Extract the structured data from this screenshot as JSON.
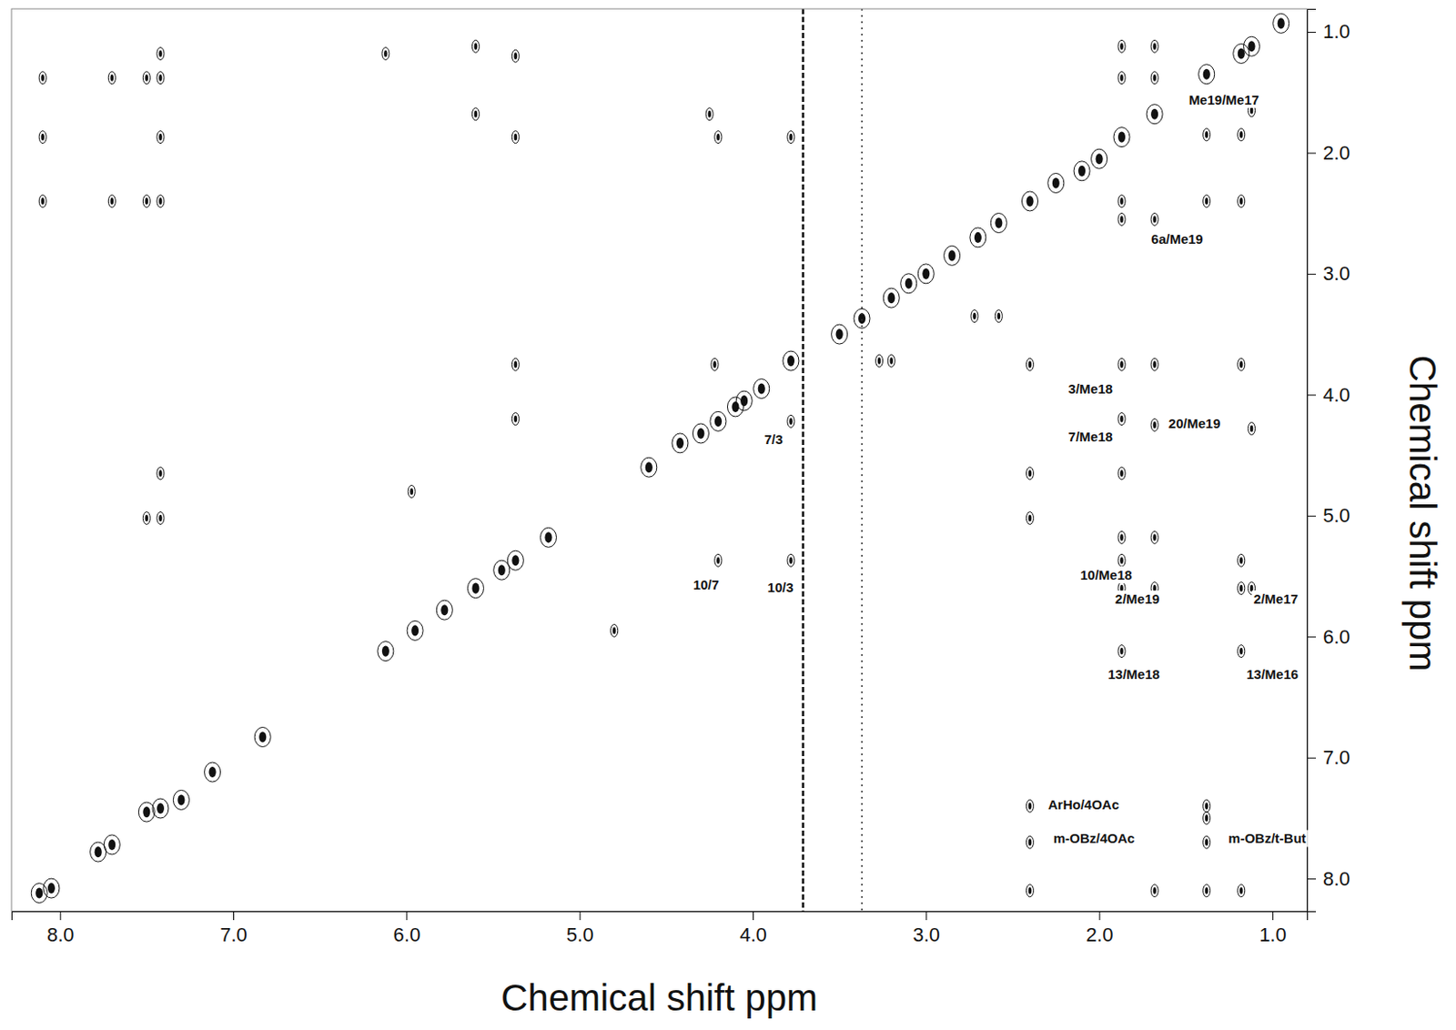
{
  "chart_data": {
    "type": "scatter",
    "x_label": "Chemical shift ppm",
    "y_label": "Chemical shift ppm",
    "xlim": [
      8.28,
      0.8
    ],
    "ylim": [
      0.81,
      8.27
    ],
    "xticks": [
      {
        "value": 8,
        "label": "8.0"
      },
      {
        "value": 7,
        "label": "7.0"
      },
      {
        "value": 6,
        "label": "6.0"
      },
      {
        "value": 5,
        "label": "5.0"
      },
      {
        "value": 4,
        "label": "4.0"
      },
      {
        "value": 3,
        "label": "3.0"
      },
      {
        "value": 2,
        "label": "2.0"
      },
      {
        "value": 1,
        "label": "1.0"
      }
    ],
    "yticks": [
      {
        "value": 1,
        "label": "1.0"
      },
      {
        "value": 2,
        "label": "2.0"
      },
      {
        "value": 3,
        "label": "3.0"
      },
      {
        "value": 4,
        "label": "4.0"
      },
      {
        "value": 5,
        "label": "5.0"
      },
      {
        "value": 6,
        "label": "6.0"
      },
      {
        "value": 7,
        "label": "7.0"
      },
      {
        "value": 8,
        "label": "8.0"
      }
    ],
    "grid": false,
    "series": [
      {
        "type": "scatter",
        "marker": "contour",
        "color": "#111111",
        "x": [
          8.12,
          8.05,
          7.78,
          7.7,
          7.5,
          7.42,
          7.3,
          7.12,
          6.83,
          6.12,
          5.95,
          5.78,
          5.6,
          5.45,
          5.37,
          5.18,
          4.6,
          4.42,
          4.3,
          4.2,
          4.1,
          4.05,
          3.95,
          3.78,
          3.5,
          3.37,
          3.2,
          3.1,
          3.0,
          2.85,
          2.7,
          2.58,
          2.4,
          2.25,
          2.1,
          2.0,
          1.87,
          1.68,
          1.38,
          1.18,
          1.12,
          0.95,
          6.12,
          5.6,
          5.37,
          8.1,
          7.7,
          7.5,
          7.42,
          7.42,
          5.6,
          5.37,
          4.2,
          3.78,
          4.25,
          8.1,
          7.7,
          7.5,
          7.42,
          7.42,
          8.1,
          2.4,
          2.4,
          2.4,
          2.4,
          2.4,
          2.4,
          1.87,
          1.87,
          1.87,
          1.87,
          1.87,
          1.87,
          1.87,
          1.87,
          1.87,
          1.87,
          1.87,
          1.68,
          1.68,
          1.68,
          1.68,
          1.68,
          1.68,
          1.68,
          1.68,
          1.38,
          1.38,
          1.38,
          1.38,
          1.38,
          1.38,
          1.18,
          1.18,
          1.18,
          1.18,
          1.18,
          1.18,
          1.18,
          1.12,
          1.12,
          1.12,
          3.78,
          4.2,
          3.78,
          4.22,
          5.37,
          5.37,
          7.42,
          7.42,
          7.5,
          2.72,
          2.58,
          3.27,
          3.2,
          4.8,
          5.97
        ],
        "values": [
          8.12,
          8.08,
          7.78,
          7.72,
          7.45,
          7.42,
          7.35,
          7.12,
          6.83,
          6.12,
          5.95,
          5.78,
          5.6,
          5.45,
          5.37,
          5.18,
          4.6,
          4.4,
          4.32,
          4.22,
          4.1,
          4.05,
          3.95,
          3.72,
          3.5,
          3.37,
          3.2,
          3.08,
          3.0,
          2.85,
          2.7,
          2.58,
          2.4,
          2.25,
          2.15,
          2.05,
          1.87,
          1.68,
          1.35,
          1.18,
          1.12,
          0.93,
          1.18,
          1.12,
          1.2,
          1.38,
          1.38,
          1.38,
          1.38,
          1.18,
          1.68,
          1.87,
          1.87,
          1.87,
          1.68,
          2.4,
          2.4,
          2.4,
          2.4,
          1.87,
          1.87,
          3.75,
          4.65,
          5.02,
          8.1,
          7.4,
          7.7,
          1.12,
          1.38,
          2.4,
          2.55,
          3.75,
          4.2,
          4.65,
          5.18,
          5.37,
          5.6,
          6.12,
          1.12,
          1.38,
          2.55,
          3.75,
          4.25,
          5.18,
          5.6,
          8.1,
          1.85,
          2.4,
          7.4,
          7.5,
          7.7,
          8.1,
          1.85,
          2.4,
          3.75,
          5.37,
          5.6,
          6.12,
          8.1,
          1.65,
          4.28,
          5.6,
          4.22,
          5.37,
          5.37,
          3.75,
          3.75,
          4.2,
          4.65,
          5.02,
          5.02,
          3.35,
          3.35,
          3.72,
          3.72,
          5.95,
          4.8
        ]
      },
      {
        "type": "line",
        "line_style": "dashed",
        "color": "#111111",
        "x": [
          3.71,
          3.71
        ],
        "values": [
          0.81,
          8.27
        ]
      },
      {
        "type": "line",
        "line_style": "dotted",
        "color": "#333333",
        "x": [
          3.37,
          3.37
        ],
        "values": [
          0.81,
          8.27
        ]
      }
    ],
    "annotations": [
      {
        "text": "Me19/Me17",
        "x": 1.28,
        "y": 1.57
      },
      {
        "text": "6a/Me19",
        "x": 1.55,
        "y": 2.72
      },
      {
        "text": "3/Me18",
        "x": 2.05,
        "y": 3.96
      },
      {
        "text": "7/Me18",
        "x": 2.05,
        "y": 4.36
      },
      {
        "text": "20/Me19",
        "x": 1.45,
        "y": 4.25
      },
      {
        "text": "7/3",
        "x": 3.88,
        "y": 4.38
      },
      {
        "text": "10/7",
        "x": 4.27,
        "y": 5.58
      },
      {
        "text": "10/3",
        "x": 3.84,
        "y": 5.6
      },
      {
        "text": "10/Me18",
        "x": 1.96,
        "y": 5.5
      },
      {
        "text": "2/Me19",
        "x": 1.78,
        "y": 5.7
      },
      {
        "text": "2/Me17",
        "x": 0.98,
        "y": 5.7
      },
      {
        "text": "13/Me18",
        "x": 1.8,
        "y": 6.32
      },
      {
        "text": "13/Me16",
        "x": 1.0,
        "y": 6.32
      },
      {
        "text": "ArHo/4OAc",
        "x": 2.09,
        "y": 7.4
      },
      {
        "text": "m-OBz/4OAc",
        "x": 2.03,
        "y": 7.68
      },
      {
        "text": "m-OBz/t-But",
        "x": 1.03,
        "y": 7.68
      }
    ]
  }
}
